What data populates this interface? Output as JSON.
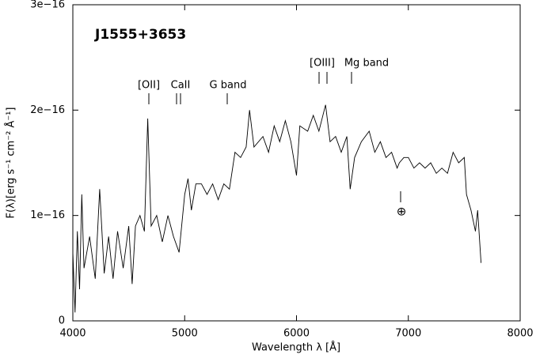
{
  "chart_data": {
    "type": "line",
    "title": "J1555+3653",
    "xlabel": "Wavelength λ [Å]",
    "ylabel": "F(λ)[erg s⁻¹ cm⁻² Å⁻¹]",
    "annotations": [
      "[OII]",
      "CaII",
      "G band",
      "[OIII]",
      "Mg band",
      "⊕"
    ],
    "color": "#000000",
    "x": [
      4000,
      4020,
      4040,
      4060,
      4080,
      4100,
      4150,
      4200,
      4240,
      4280,
      4320,
      4360,
      4400,
      4450,
      4500,
      4530,
      4560,
      4600,
      4640,
      4670,
      4700,
      4750,
      4800,
      4850,
      4900,
      4950,
      5000,
      5030,
      5060,
      5100,
      5150,
      5200,
      5250,
      5300,
      5350,
      5400,
      5450,
      5500,
      5550,
      5580,
      5620,
      5700,
      5750,
      5800,
      5850,
      5900,
      5950,
      6000,
      6030,
      6100,
      6150,
      6200,
      6260,
      6300,
      6350,
      6400,
      6450,
      6480,
      6520,
      6580,
      6650,
      6700,
      6750,
      6800,
      6850,
      6900,
      6920,
      6960,
      7000,
      7050,
      7100,
      7150,
      7200,
      7250,
      7300,
      7350,
      7400,
      7450,
      7500,
      7520,
      7560,
      7600,
      7620,
      7650
    ],
    "values": [
      6.5e-17,
      8e-18,
      8.5e-17,
      3e-17,
      1.2e-16,
      5e-17,
      8e-17,
      4e-17,
      1.25e-16,
      4.5e-17,
      8e-17,
      4e-17,
      8.5e-17,
      5e-17,
      9e-17,
      3.5e-17,
      9e-17,
      1e-16,
      8.5e-17,
      1.92e-16,
      9e-17,
      1e-16,
      7.5e-17,
      1e-16,
      8e-17,
      6.5e-17,
      1.2e-16,
      1.35e-16,
      1.05e-16,
      1.3e-16,
      1.3e-16,
      1.2e-16,
      1.3e-16,
      1.15e-16,
      1.3e-16,
      1.25e-16,
      1.6e-16,
      1.55e-16,
      1.65e-16,
      2e-16,
      1.65e-16,
      1.75e-16,
      1.6e-16,
      1.85e-16,
      1.7e-16,
      1.9e-16,
      1.7e-16,
      1.38e-16,
      1.85e-16,
      1.8e-16,
      1.95e-16,
      1.8e-16,
      2.05e-16,
      1.7e-16,
      1.75e-16,
      1.6e-16,
      1.75e-16,
      1.25e-16,
      1.55e-16,
      1.7e-16,
      1.8e-16,
      1.6e-16,
      1.7e-16,
      1.55e-16,
      1.6e-16,
      1.45e-16,
      1.5e-16,
      1.55e-16,
      1.55e-16,
      1.45e-16,
      1.5e-16,
      1.45e-16,
      1.5e-16,
      1.4e-16,
      1.45e-16,
      1.4e-16,
      1.6e-16,
      1.5e-16,
      1.55e-16,
      1.2e-16,
      1.05e-16,
      8.5e-17,
      1.05e-16,
      5.5e-17
    ],
    "xlim": [
      4000,
      8000
    ],
    "xticks": [
      4000,
      5000,
      6000,
      7000,
      8000
    ],
    "ylim": [
      0,
      3e-16
    ],
    "yticks": [
      0,
      {
        "value": 1e-16,
        "label": "1e−16"
      },
      {
        "value": 2e-16,
        "label": "2e−16"
      },
      {
        "value": 3e-16,
        "label": "3e−16"
      }
    ]
  }
}
